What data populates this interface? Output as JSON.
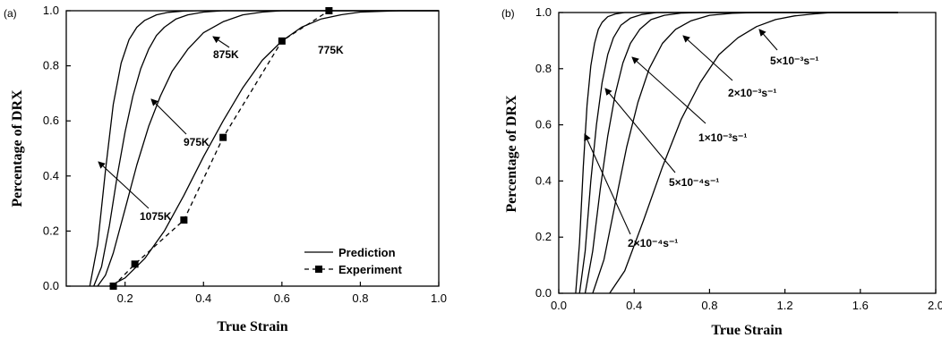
{
  "chart_data": [
    {
      "panel_label": "(a)",
      "type": "line",
      "xlabel": "True Strain",
      "ylabel": "Percentage of DRX",
      "xlim": [
        0.05,
        1.0
      ],
      "ylim": [
        0.0,
        1.0
      ],
      "xticks": [
        "0.2",
        "0.4",
        "0.6",
        "0.8",
        "1.0"
      ],
      "yticks": [
        "0.0",
        "0.2",
        "0.4",
        "0.6",
        "0.8",
        "1.0"
      ],
      "legend_position": "bottom-right",
      "legend": [
        {
          "label": "Prediction",
          "style": "solid"
        },
        {
          "label": "Experiment",
          "style": "dashed-square"
        }
      ],
      "series": [
        {
          "name": "1075K",
          "style": "solid",
          "x": [
            0.11,
            0.13,
            0.15,
            0.17,
            0.19,
            0.21,
            0.23,
            0.25,
            0.28,
            0.31,
            0.35,
            0.4,
            0.5,
            0.6,
            0.8,
            1.0
          ],
          "y": [
            0.0,
            0.15,
            0.42,
            0.66,
            0.81,
            0.895,
            0.94,
            0.965,
            0.985,
            0.994,
            0.999,
            1.0,
            1.0,
            1.0,
            1.0,
            1.0
          ]
        },
        {
          "name": "975K",
          "style": "solid",
          "x": [
            0.12,
            0.14,
            0.16,
            0.18,
            0.2,
            0.22,
            0.24,
            0.26,
            0.28,
            0.3,
            0.33,
            0.36,
            0.4,
            0.45,
            0.5,
            0.6,
            0.8,
            1.0
          ],
          "y": [
            0.0,
            0.07,
            0.22,
            0.4,
            0.56,
            0.69,
            0.79,
            0.86,
            0.91,
            0.94,
            0.97,
            0.985,
            0.995,
            1.0,
            1.0,
            1.0,
            1.0,
            1.0
          ]
        },
        {
          "name": "875K",
          "style": "solid",
          "x": [
            0.13,
            0.15,
            0.17,
            0.2,
            0.23,
            0.26,
            0.29,
            0.32,
            0.36,
            0.4,
            0.45,
            0.5,
            0.55,
            0.6,
            0.7,
            0.8,
            1.0
          ],
          "y": [
            0.0,
            0.04,
            0.12,
            0.28,
            0.44,
            0.58,
            0.69,
            0.78,
            0.86,
            0.92,
            0.96,
            0.985,
            0.995,
            1.0,
            1.0,
            1.0,
            1.0
          ]
        },
        {
          "name": "775K",
          "style": "solid",
          "x": [
            0.16,
            0.2,
            0.25,
            0.3,
            0.35,
            0.4,
            0.45,
            0.5,
            0.55,
            0.6,
            0.65,
            0.7,
            0.75,
            0.8,
            0.9,
            1.0
          ],
          "y": [
            0.0,
            0.03,
            0.1,
            0.2,
            0.33,
            0.47,
            0.6,
            0.72,
            0.82,
            0.89,
            0.94,
            0.97,
            0.985,
            0.995,
            1.0,
            1.0
          ]
        },
        {
          "name": "Experiment",
          "style": "dashed-square",
          "x": [
            0.17,
            0.225,
            0.35,
            0.45,
            0.6,
            0.72
          ],
          "y": [
            0.0,
            0.08,
            0.24,
            0.54,
            0.89,
            1.0
          ]
        }
      ],
      "annotations": [
        "1075K",
        "975K",
        "875K",
        "775K"
      ]
    },
    {
      "panel_label": "(b)",
      "type": "line",
      "xlabel": "True Strain",
      "ylabel": "Percentage of DRX",
      "xlim": [
        0.0,
        2.0
      ],
      "ylim": [
        0.0,
        1.0
      ],
      "xticks": [
        "0.0",
        "0.4",
        "0.8",
        "1.2",
        "1.6",
        "2.0"
      ],
      "yticks": [
        "0.0",
        "0.2",
        "0.4",
        "0.6",
        "0.8",
        "1.0"
      ],
      "series": [
        {
          "name": "2×10⁻⁴s⁻¹",
          "style": "solid",
          "x": [
            0.09,
            0.11,
            0.13,
            0.15,
            0.17,
            0.19,
            0.21,
            0.23,
            0.26,
            0.3,
            0.35,
            0.45,
            0.6,
            1.0,
            1.8
          ],
          "y": [
            0.0,
            0.18,
            0.45,
            0.67,
            0.81,
            0.89,
            0.94,
            0.965,
            0.985,
            0.995,
            1.0,
            1.0,
            1.0,
            1.0,
            1.0
          ]
        },
        {
          "name": "5×10⁻⁴s⁻¹",
          "style": "solid",
          "x": [
            0.11,
            0.14,
            0.17,
            0.2,
            0.23,
            0.26,
            0.29,
            0.33,
            0.38,
            0.44,
            0.52,
            0.6,
            1.0,
            1.8
          ],
          "y": [
            0.0,
            0.15,
            0.4,
            0.6,
            0.75,
            0.85,
            0.91,
            0.955,
            0.98,
            0.993,
            1.0,
            1.0,
            1.0,
            1.0
          ]
        },
        {
          "name": "1×10⁻³s⁻¹",
          "style": "solid",
          "x": [
            0.14,
            0.18,
            0.22,
            0.26,
            0.3,
            0.34,
            0.38,
            0.43,
            0.49,
            0.56,
            0.65,
            0.75,
            1.0,
            1.8
          ],
          "y": [
            0.0,
            0.15,
            0.37,
            0.56,
            0.71,
            0.82,
            0.89,
            0.94,
            0.975,
            0.99,
            0.998,
            1.0,
            1.0,
            1.0
          ]
        },
        {
          "name": "2×10⁻³s⁻¹",
          "style": "solid",
          "x": [
            0.18,
            0.24,
            0.3,
            0.36,
            0.42,
            0.48,
            0.55,
            0.62,
            0.7,
            0.8,
            0.92,
            1.05,
            1.2,
            1.8
          ],
          "y": [
            0.0,
            0.12,
            0.32,
            0.52,
            0.68,
            0.8,
            0.89,
            0.94,
            0.97,
            0.99,
            0.997,
            1.0,
            1.0,
            1.0
          ]
        },
        {
          "name": "5×10⁻³s⁻¹",
          "style": "solid",
          "x": [
            0.27,
            0.35,
            0.45,
            0.55,
            0.65,
            0.75,
            0.85,
            0.95,
            1.05,
            1.15,
            1.25,
            1.35,
            1.45,
            1.6,
            1.8
          ],
          "y": [
            0.0,
            0.08,
            0.26,
            0.45,
            0.62,
            0.75,
            0.85,
            0.91,
            0.95,
            0.975,
            0.988,
            0.995,
            1.0,
            1.0,
            1.0
          ]
        }
      ],
      "annotations": [
        "2×10⁻⁴s⁻¹",
        "5×10⁻⁴s⁻¹",
        "1×10⁻³s⁻¹",
        "2×10⁻³s⁻¹",
        "5×10⁻³s⁻¹"
      ]
    }
  ]
}
